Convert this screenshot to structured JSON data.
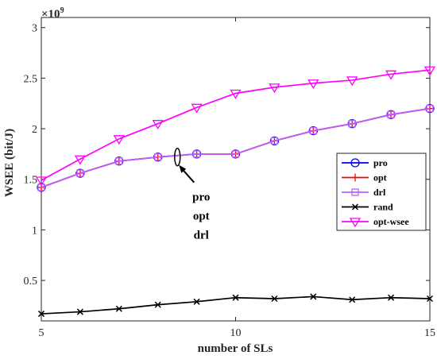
{
  "chart_data": {
    "type": "line",
    "xlabel": "number of SLs",
    "ylabel": "WSEE (bit/J)",
    "y_exponent_label": "×10",
    "y_exponent_power": "9",
    "xlim": [
      5,
      15
    ],
    "ylim": [
      0.1,
      3.1
    ],
    "x_ticks": [
      5,
      10,
      15
    ],
    "x_tick_labels": [
      "5",
      "10",
      "15"
    ],
    "y_ticks": [
      0.5,
      1,
      1.5,
      2,
      2.5,
      3
    ],
    "y_tick_labels": [
      "0.5",
      "1",
      "1.5",
      "2",
      "2.5",
      "3"
    ],
    "grid": false,
    "legend_position": "right",
    "x": [
      5,
      6,
      7,
      8,
      9,
      10,
      11,
      12,
      13,
      14,
      15
    ],
    "series": [
      {
        "name": "pro",
        "color": "#0000ff",
        "marker": "circle",
        "values": [
          1.42,
          1.56,
          1.68,
          1.72,
          1.75,
          1.75,
          1.88,
          1.98,
          2.05,
          2.14,
          2.2
        ]
      },
      {
        "name": "opt",
        "color": "#ff0000",
        "marker": "plus",
        "values": [
          1.42,
          1.56,
          1.68,
          1.72,
          1.75,
          1.75,
          1.88,
          1.98,
          2.05,
          2.14,
          2.2
        ]
      },
      {
        "name": "drl",
        "color": "#bf5fff",
        "marker": "square",
        "values": [
          1.42,
          1.56,
          1.68,
          1.72,
          1.75,
          1.75,
          1.88,
          1.98,
          2.05,
          2.14,
          2.2
        ]
      },
      {
        "name": "rand",
        "color": "#000000",
        "marker": "x",
        "values": [
          0.17,
          0.19,
          0.22,
          0.26,
          0.29,
          0.33,
          0.32,
          0.34,
          0.31,
          0.33,
          0.32
        ]
      },
      {
        "name": "opt-wsee",
        "color": "#ff00ff",
        "marker": "triangle-down",
        "values": [
          1.49,
          1.7,
          1.9,
          2.05,
          2.21,
          2.35,
          2.41,
          2.45,
          2.48,
          2.54,
          2.58
        ]
      }
    ],
    "annotation": {
      "lines": [
        "pro",
        "opt",
        "drl"
      ],
      "x": 8.4,
      "y": 1.72
    }
  }
}
